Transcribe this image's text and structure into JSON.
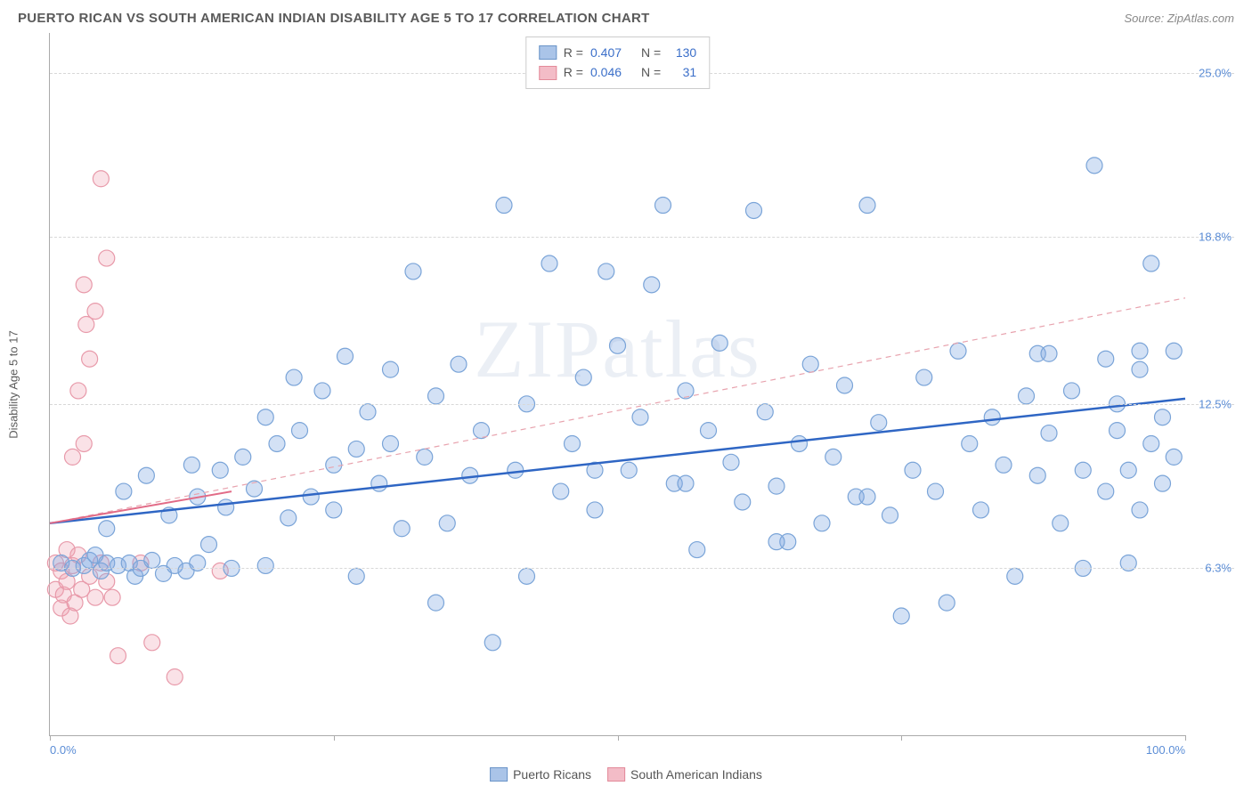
{
  "header": {
    "title": "PUERTO RICAN VS SOUTH AMERICAN INDIAN DISABILITY AGE 5 TO 17 CORRELATION CHART",
    "source_prefix": "Source: ",
    "source_link": "ZipAtlas.com"
  },
  "chart": {
    "type": "scatter",
    "ylabel": "Disability Age 5 to 17",
    "watermark": "ZIPatlas",
    "xlim": [
      0,
      100
    ],
    "ylim": [
      0,
      26.5
    ],
    "xtick_positions": [
      0,
      25,
      50,
      75,
      100
    ],
    "xtick_labels": {
      "0": "0.0%",
      "100": "100.0%"
    },
    "ytick_positions": [
      6.3,
      12.5,
      18.8,
      25.0
    ],
    "ytick_labels": [
      "6.3%",
      "12.5%",
      "18.8%",
      "25.0%"
    ],
    "ylim_display_top": 0.02,
    "grid_color": "#d8d8d8",
    "background_color": "#ffffff",
    "marker_radius": 9,
    "marker_stroke_width": 1.2,
    "series": {
      "puerto_ricans": {
        "label": "Puerto Ricans",
        "fill": "rgba(130, 170, 225, 0.35)",
        "stroke": "#7aa4d8",
        "swatch_fill": "#aac4e8",
        "swatch_stroke": "#6a94c8",
        "R": "0.407",
        "N": "130",
        "trend_solid": {
          "x1": 0,
          "y1": 8.0,
          "x2": 100,
          "y2": 12.7,
          "stroke": "#2f66c4",
          "width": 2.5
        },
        "trend_dashed": {
          "x1": 0,
          "y1": 8.0,
          "x2": 100,
          "y2": 16.5,
          "stroke": "#e8a3ae",
          "width": 1.2,
          "dash": "6,5"
        },
        "points": [
          [
            1,
            6.5
          ],
          [
            2,
            6.3
          ],
          [
            3,
            6.4
          ],
          [
            3.5,
            6.6
          ],
          [
            4,
            6.8
          ],
          [
            4.5,
            6.2
          ],
          [
            5,
            6.5
          ],
          [
            5,
            7.8
          ],
          [
            6,
            6.4
          ],
          [
            6.5,
            9.2
          ],
          [
            7,
            6.5
          ],
          [
            7.5,
            6.0
          ],
          [
            8,
            6.3
          ],
          [
            8.5,
            9.8
          ],
          [
            9,
            6.6
          ],
          [
            10,
            6.1
          ],
          [
            10.5,
            8.3
          ],
          [
            11,
            6.4
          ],
          [
            12,
            6.2
          ],
          [
            12.5,
            10.2
          ],
          [
            13,
            6.5
          ],
          [
            13,
            9.0
          ],
          [
            14,
            7.2
          ],
          [
            15,
            10.0
          ],
          [
            15.5,
            8.6
          ],
          [
            16,
            6.3
          ],
          [
            17,
            10.5
          ],
          [
            18,
            9.3
          ],
          [
            19,
            6.4
          ],
          [
            19,
            12.0
          ],
          [
            20,
            11.0
          ],
          [
            21,
            8.2
          ],
          [
            21.5,
            13.5
          ],
          [
            22,
            11.5
          ],
          [
            23,
            9.0
          ],
          [
            24,
            13.0
          ],
          [
            25,
            8.5
          ],
          [
            25,
            10.2
          ],
          [
            26,
            14.3
          ],
          [
            27,
            10.8
          ],
          [
            27,
            6.0
          ],
          [
            28,
            12.2
          ],
          [
            29,
            9.5
          ],
          [
            30,
            11.0
          ],
          [
            30,
            13.8
          ],
          [
            31,
            7.8
          ],
          [
            32,
            17.5
          ],
          [
            33,
            10.5
          ],
          [
            34,
            12.8
          ],
          [
            34,
            5.0
          ],
          [
            35,
            8.0
          ],
          [
            36,
            14.0
          ],
          [
            37,
            9.8
          ],
          [
            38,
            11.5
          ],
          [
            39,
            3.5
          ],
          [
            40,
            20.0
          ],
          [
            41,
            10.0
          ],
          [
            42,
            12.5
          ],
          [
            42,
            6.0
          ],
          [
            44,
            17.8
          ],
          [
            45,
            9.2
          ],
          [
            46,
            11.0
          ],
          [
            47,
            13.5
          ],
          [
            48,
            8.5
          ],
          [
            49,
            17.5
          ],
          [
            50,
            14.7
          ],
          [
            51,
            10.0
          ],
          [
            52,
            12.0
          ],
          [
            53,
            17.0
          ],
          [
            54,
            20.0
          ],
          [
            55,
            9.5
          ],
          [
            56,
            13.0
          ],
          [
            57,
            7.0
          ],
          [
            58,
            11.5
          ],
          [
            59,
            14.8
          ],
          [
            60,
            10.3
          ],
          [
            61,
            8.8
          ],
          [
            62,
            19.8
          ],
          [
            63,
            12.2
          ],
          [
            64,
            9.4
          ],
          [
            65,
            7.3
          ],
          [
            66,
            11.0
          ],
          [
            67,
            14.0
          ],
          [
            68,
            8.0
          ],
          [
            69,
            10.5
          ],
          [
            70,
            13.2
          ],
          [
            71,
            9.0
          ],
          [
            72,
            20.0
          ],
          [
            73,
            11.8
          ],
          [
            74,
            8.3
          ],
          [
            75,
            4.5
          ],
          [
            76,
            10.0
          ],
          [
            77,
            13.5
          ],
          [
            78,
            9.2
          ],
          [
            79,
            5.0
          ],
          [
            80,
            14.5
          ],
          [
            81,
            11.0
          ],
          [
            82,
            8.5
          ],
          [
            83,
            12.0
          ],
          [
            84,
            10.2
          ],
          [
            85,
            6.0
          ],
          [
            86,
            12.8
          ],
          [
            87,
            14.4
          ],
          [
            87,
            9.8
          ],
          [
            88,
            11.4
          ],
          [
            89,
            8.0
          ],
          [
            90,
            13.0
          ],
          [
            91,
            10.0
          ],
          [
            91,
            6.3
          ],
          [
            92,
            21.5
          ],
          [
            93,
            14.2
          ],
          [
            93,
            9.2
          ],
          [
            94,
            11.5
          ],
          [
            94,
            12.5
          ],
          [
            95,
            6.5
          ],
          [
            95,
            10.0
          ],
          [
            96,
            13.8
          ],
          [
            96,
            8.5
          ],
          [
            97,
            17.8
          ],
          [
            97,
            11.0
          ],
          [
            98,
            12.0
          ],
          [
            98,
            9.5
          ],
          [
            99,
            14.5
          ],
          [
            99,
            10.5
          ],
          [
            96,
            14.5
          ],
          [
            88,
            14.4
          ],
          [
            72,
            9.0
          ],
          [
            64,
            7.3
          ],
          [
            56,
            9.5
          ],
          [
            48,
            10.0
          ]
        ]
      },
      "south_american_indians": {
        "label": "South American Indians",
        "fill": "rgba(240, 160, 175, 0.30)",
        "stroke": "#e89aaa",
        "swatch_fill": "#f3bcc7",
        "swatch_stroke": "#e38a9a",
        "R": "0.046",
        "N": "31",
        "trend_solid": {
          "x1": 0,
          "y1": 8.0,
          "x2": 16,
          "y2": 9.2,
          "stroke": "#e26b87",
          "width": 2
        },
        "points": [
          [
            0.5,
            5.5
          ],
          [
            0.5,
            6.5
          ],
          [
            1.0,
            4.8
          ],
          [
            1.0,
            6.2
          ],
          [
            1.2,
            5.3
          ],
          [
            1.5,
            7.0
          ],
          [
            1.5,
            5.8
          ],
          [
            1.8,
            4.5
          ],
          [
            2.0,
            6.4
          ],
          [
            2.0,
            10.5
          ],
          [
            2.2,
            5.0
          ],
          [
            2.5,
            6.8
          ],
          [
            2.5,
            13.0
          ],
          [
            2.8,
            5.5
          ],
          [
            3.0,
            11.0
          ],
          [
            3.0,
            17.0
          ],
          [
            3.2,
            15.5
          ],
          [
            3.5,
            6.0
          ],
          [
            3.5,
            14.2
          ],
          [
            4.0,
            5.2
          ],
          [
            4.0,
            16.0
          ],
          [
            4.5,
            6.5
          ],
          [
            4.5,
            21.0
          ],
          [
            5.0,
            5.8
          ],
          [
            5.0,
            18.0
          ],
          [
            5.5,
            5.2
          ],
          [
            6.0,
            3.0
          ],
          [
            8.0,
            6.5
          ],
          [
            9.0,
            3.5
          ],
          [
            11.0,
            2.2
          ],
          [
            15.0,
            6.2
          ]
        ]
      }
    },
    "legend_top": {
      "R_label": "R =",
      "N_label": "N ="
    },
    "legend_bottom_order": [
      "puerto_ricans",
      "south_american_indians"
    ]
  }
}
